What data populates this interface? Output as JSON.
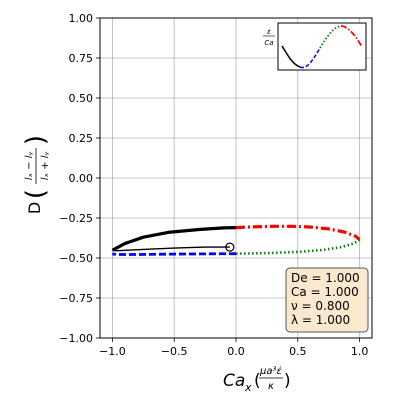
{
  "chart_data": {
    "type": "line",
    "xlabel": {
      "main": "Ca",
      "sub": "x",
      "frac_num": "μa³ε̇",
      "frac_den": "κ"
    },
    "ylabel": {
      "main": "D",
      "frac_num": "lₓ − lᵧ",
      "frac_den": "lₓ + lᵧ"
    },
    "xlim": [
      -1.1,
      1.1
    ],
    "ylim": [
      -1.0,
      1.0
    ],
    "x_ticks": [
      -1.0,
      -0.5,
      0.0,
      0.5,
      1.0
    ],
    "x_tick_labels": [
      "−1.0",
      "−0.5",
      "0.0",
      "0.5",
      "1.0"
    ],
    "y_ticks": [
      -1.0,
      -0.75,
      -0.5,
      -0.25,
      0.0,
      0.25,
      0.5,
      0.75,
      1.0
    ],
    "y_tick_labels": [
      "−1.00",
      "−0.75",
      "−0.50",
      "−0.25",
      "0.00",
      "0.25",
      "0.50",
      "0.75",
      "1.00"
    ],
    "grid": true,
    "series": [
      {
        "style": "solid-black-thin",
        "color": "#000000",
        "points": [
          [
            -0.05,
            -0.432
          ],
          [
            -0.25,
            -0.432
          ],
          [
            -0.5,
            -0.438
          ],
          [
            -0.75,
            -0.446
          ],
          [
            -0.98,
            -0.455
          ]
        ]
      },
      {
        "style": "solid-black-thick",
        "color": "#000000",
        "points": [
          [
            -1.0,
            -0.452
          ],
          [
            -0.9,
            -0.41
          ],
          [
            -0.75,
            -0.37
          ],
          [
            -0.55,
            -0.34
          ],
          [
            -0.3,
            -0.322
          ],
          [
            -0.1,
            -0.312
          ],
          [
            0.0,
            -0.31
          ]
        ]
      },
      {
        "style": "dashdot-red",
        "color": "#ff0000",
        "points": [
          [
            0.0,
            -0.31
          ],
          [
            0.15,
            -0.305
          ],
          [
            0.3,
            -0.302
          ],
          [
            0.45,
            -0.302
          ],
          [
            0.6,
            -0.306
          ],
          [
            0.75,
            -0.318
          ],
          [
            0.88,
            -0.338
          ],
          [
            0.97,
            -0.365
          ],
          [
            1.0,
            -0.385
          ]
        ]
      },
      {
        "style": "dotted-green",
        "color": "#008000",
        "points": [
          [
            1.0,
            -0.385
          ],
          [
            0.95,
            -0.41
          ],
          [
            0.85,
            -0.432
          ],
          [
            0.7,
            -0.45
          ],
          [
            0.5,
            -0.462
          ],
          [
            0.3,
            -0.468
          ],
          [
            0.1,
            -0.472
          ],
          [
            0.0,
            -0.473
          ]
        ]
      },
      {
        "style": "dashed-blue",
        "color": "#0000ff",
        "points": [
          [
            0.0,
            -0.473
          ],
          [
            -0.2,
            -0.474
          ],
          [
            -0.4,
            -0.475
          ],
          [
            -0.6,
            -0.476
          ],
          [
            -0.8,
            -0.478
          ],
          [
            -0.95,
            -0.478
          ],
          [
            -1.0,
            -0.475
          ]
        ]
      }
    ],
    "start_marker": {
      "x": -0.05,
      "y": -0.432
    },
    "inset": {
      "ylabel_num": "ε̇",
      "ylabel_den": "Ca"
    },
    "params": [
      "De = 1.000",
      "Ca = 1.000",
      "ν = 0.800",
      "λ = 1.000"
    ]
  }
}
